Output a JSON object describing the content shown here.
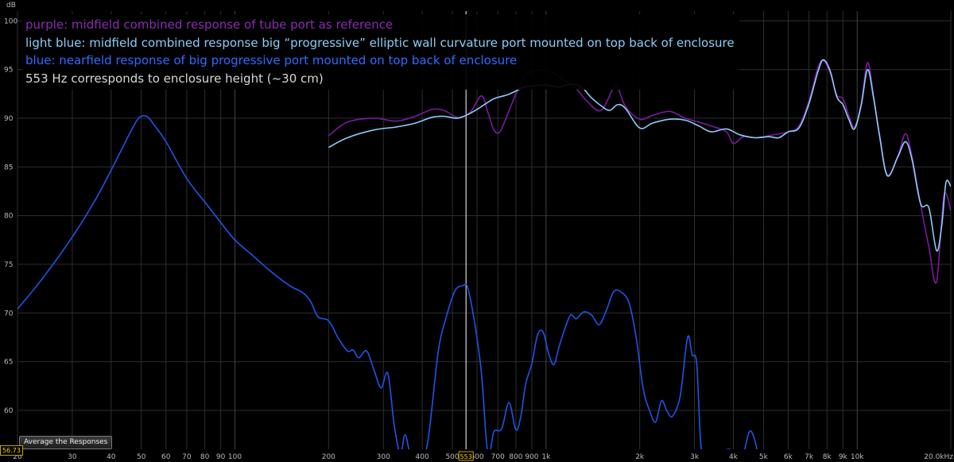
{
  "legend": {
    "purple": "purple: midfield combined response of tube port as reference",
    "light_blue": "light blue: midfield combined response big “progressive” elliptic wall curvature port mounted on top back of enclosure",
    "blue": "blue: nearfield response of big progressive port mounted on top back of enclosure",
    "note": "553 Hz corresponds to enclosure height (~30 cm)"
  },
  "colors": {
    "purple": "#7a1aa0",
    "light_blue": "#8ccdf5",
    "blue": "#1e55e8",
    "cursor": "#ffffff",
    "grid": "#2e2e2e",
    "note": "#d8d8d8"
  },
  "controls": {
    "average_button": "Average the Responses",
    "cursor_readout": "56.73",
    "cursor_freq_label": "553"
  },
  "chart_data": {
    "type": "line",
    "ylabel": "dB",
    "x_scale": "log",
    "xlim": [
      20,
      20000
    ],
    "ylim": [
      56,
      101
    ],
    "y_ticks": [
      60,
      65,
      70,
      75,
      80,
      85,
      90,
      95,
      100
    ],
    "x_ticks": [
      {
        "v": 20,
        "label": "20"
      },
      {
        "v": 30,
        "label": "30"
      },
      {
        "v": 40,
        "label": "40"
      },
      {
        "v": 50,
        "label": "50"
      },
      {
        "v": 60,
        "label": "60"
      },
      {
        "v": 70,
        "label": "70"
      },
      {
        "v": 80,
        "label": "80"
      },
      {
        "v": 90,
        "label": "90"
      },
      {
        "v": 100,
        "label": "100"
      },
      {
        "v": 200,
        "label": "200"
      },
      {
        "v": 300,
        "label": "300"
      },
      {
        "v": 400,
        "label": "400"
      },
      {
        "v": 500,
        "label": "500"
      },
      {
        "v": 600,
        "label": "600"
      },
      {
        "v": 700,
        "label": "700"
      },
      {
        "v": 800,
        "label": "800"
      },
      {
        "v": 900,
        "label": "900"
      },
      {
        "v": 1000,
        "label": "1k"
      },
      {
        "v": 2000,
        "label": "2k"
      },
      {
        "v": 3000,
        "label": "3k"
      },
      {
        "v": 4000,
        "label": "4k"
      },
      {
        "v": 5000,
        "label": "5k"
      },
      {
        "v": 6000,
        "label": "6k"
      },
      {
        "v": 7000,
        "label": "7k"
      },
      {
        "v": 8000,
        "label": "8k"
      },
      {
        "v": 9000,
        "label": "9k"
      },
      {
        "v": 10000,
        "label": "10k"
      },
      {
        "v": 20000,
        "label": "20.0kHz"
      }
    ],
    "cursor_x": 553,
    "series": [
      {
        "key": "purple",
        "points": [
          [
            200,
            88.2
          ],
          [
            230,
            89.6
          ],
          [
            280,
            90.0
          ],
          [
            330,
            89.7
          ],
          [
            380,
            90.2
          ],
          [
            430,
            90.9
          ],
          [
            470,
            90.8
          ],
          [
            520,
            90.1
          ],
          [
            570,
            90.6
          ],
          [
            620,
            92.3
          ],
          [
            650,
            90.6
          ],
          [
            680,
            88.8
          ],
          [
            710,
            88.6
          ],
          [
            750,
            90.3
          ],
          [
            800,
            92.5
          ],
          [
            850,
            94.2
          ],
          [
            900,
            94.8
          ],
          [
            1000,
            94.9
          ],
          [
            1100,
            94.3
          ],
          [
            1250,
            93.0
          ],
          [
            1350,
            91.8
          ],
          [
            1500,
            90.8
          ],
          [
            1650,
            93.2
          ],
          [
            1700,
            93.2
          ],
          [
            1800,
            91.2
          ],
          [
            2000,
            89.9
          ],
          [
            2200,
            90.3
          ],
          [
            2500,
            90.7
          ],
          [
            2800,
            90.0
          ],
          [
            3100,
            89.6
          ],
          [
            3400,
            89.2
          ],
          [
            3800,
            88.6
          ],
          [
            4000,
            87.4
          ],
          [
            4300,
            88.1
          ],
          [
            4700,
            88.0
          ],
          [
            5200,
            88.2
          ],
          [
            5600,
            88.4
          ],
          [
            6000,
            88.6
          ],
          [
            6500,
            89.2
          ],
          [
            7000,
            91.8
          ],
          [
            7500,
            95.3
          ],
          [
            7800,
            95.9
          ],
          [
            8200,
            94.6
          ],
          [
            8600,
            92.4
          ],
          [
            9000,
            92.0
          ],
          [
            9400,
            90.3
          ],
          [
            9800,
            89.1
          ],
          [
            10300,
            91.5
          ],
          [
            10800,
            95.7
          ],
          [
            11300,
            92.2
          ],
          [
            11800,
            88.4
          ],
          [
            12500,
            84.2
          ],
          [
            13500,
            86.1
          ],
          [
            14300,
            88.4
          ],
          [
            15000,
            86.1
          ],
          [
            16000,
            81.1
          ],
          [
            17000,
            76.8
          ],
          [
            18000,
            73.2
          ],
          [
            19000,
            82.0
          ],
          [
            20000,
            80.5
          ]
        ]
      },
      {
        "key": "light_blue",
        "points": [
          [
            200,
            87.0
          ],
          [
            230,
            88.0
          ],
          [
            280,
            88.8
          ],
          [
            330,
            89.1
          ],
          [
            380,
            89.5
          ],
          [
            430,
            90.1
          ],
          [
            470,
            90.2
          ],
          [
            520,
            90.0
          ],
          [
            570,
            90.5
          ],
          [
            620,
            91.2
          ],
          [
            680,
            92.0
          ],
          [
            750,
            92.4
          ],
          [
            800,
            92.8
          ],
          [
            850,
            93.2
          ],
          [
            900,
            93.3
          ],
          [
            1000,
            93.4
          ],
          [
            1100,
            93.2
          ],
          [
            1200,
            93.5
          ],
          [
            1300,
            93.2
          ],
          [
            1400,
            92.1
          ],
          [
            1500,
            91.3
          ],
          [
            1600,
            90.8
          ],
          [
            1700,
            91.4
          ],
          [
            1800,
            91.0
          ],
          [
            2000,
            89.0
          ],
          [
            2200,
            89.5
          ],
          [
            2500,
            89.9
          ],
          [
            2800,
            89.8
          ],
          [
            3100,
            89.2
          ],
          [
            3400,
            88.6
          ],
          [
            3800,
            88.9
          ],
          [
            4200,
            88.3
          ],
          [
            4700,
            88.0
          ],
          [
            5200,
            88.1
          ],
          [
            5600,
            88.0
          ],
          [
            6000,
            88.6
          ],
          [
            6500,
            89.0
          ],
          [
            7000,
            91.5
          ],
          [
            7500,
            94.9
          ],
          [
            7800,
            96.0
          ],
          [
            8200,
            94.8
          ],
          [
            8600,
            92.2
          ],
          [
            9000,
            91.4
          ],
          [
            9400,
            89.9
          ],
          [
            9800,
            88.9
          ],
          [
            10300,
            91.3
          ],
          [
            10800,
            95.0
          ],
          [
            11300,
            92.0
          ],
          [
            11800,
            88.2
          ],
          [
            12500,
            84.1
          ],
          [
            13500,
            86.0
          ],
          [
            14300,
            87.6
          ],
          [
            15000,
            85.8
          ],
          [
            16000,
            81.2
          ],
          [
            17000,
            80.8
          ],
          [
            18000,
            76.4
          ],
          [
            18700,
            79.0
          ],
          [
            19300,
            83.4
          ],
          [
            20000,
            83.0
          ]
        ]
      },
      {
        "key": "blue",
        "points": [
          [
            20,
            70.4
          ],
          [
            24,
            73.5
          ],
          [
            30,
            77.8
          ],
          [
            36,
            81.9
          ],
          [
            42,
            86.0
          ],
          [
            46,
            88.5
          ],
          [
            49,
            90.0
          ],
          [
            52,
            90.2
          ],
          [
            55,
            89.3
          ],
          [
            60,
            87.6
          ],
          [
            70,
            83.8
          ],
          [
            80,
            81.4
          ],
          [
            90,
            79.3
          ],
          [
            100,
            77.5
          ],
          [
            115,
            75.8
          ],
          [
            130,
            74.3
          ],
          [
            150,
            72.8
          ],
          [
            165,
            72.1
          ],
          [
            175,
            71.2
          ],
          [
            185,
            69.6
          ],
          [
            200,
            69.2
          ],
          [
            215,
            67.4
          ],
          [
            230,
            66.1
          ],
          [
            240,
            66.2
          ],
          [
            250,
            65.4
          ],
          [
            265,
            66.1
          ],
          [
            280,
            64.1
          ],
          [
            295,
            62.3
          ],
          [
            310,
            63.8
          ],
          [
            325,
            58.5
          ],
          [
            340,
            55.5
          ],
          [
            352,
            57.5
          ],
          [
            365,
            55.6
          ],
          [
            380,
            54.5
          ],
          [
            400,
            54.6
          ],
          [
            420,
            57.5
          ],
          [
            450,
            66.0
          ],
          [
            480,
            69.8
          ],
          [
            510,
            72.3
          ],
          [
            540,
            72.8
          ],
          [
            560,
            72.6
          ],
          [
            590,
            68.9
          ],
          [
            620,
            63.8
          ],
          [
            650,
            55.5
          ],
          [
            680,
            57.8
          ],
          [
            720,
            58.1
          ],
          [
            760,
            60.8
          ],
          [
            800,
            58.0
          ],
          [
            830,
            59.4
          ],
          [
            860,
            62.7
          ],
          [
            900,
            64.8
          ],
          [
            940,
            67.8
          ],
          [
            980,
            68.0
          ],
          [
            1020,
            65.8
          ],
          [
            1060,
            64.7
          ],
          [
            1100,
            66.5
          ],
          [
            1150,
            68.4
          ],
          [
            1200,
            69.8
          ],
          [
            1250,
            69.4
          ],
          [
            1320,
            70.1
          ],
          [
            1400,
            69.8
          ],
          [
            1480,
            68.8
          ],
          [
            1560,
            70.2
          ],
          [
            1650,
            72.2
          ],
          [
            1750,
            72.1
          ],
          [
            1850,
            71.0
          ],
          [
            1950,
            67.4
          ],
          [
            2050,
            62.3
          ],
          [
            2150,
            60.0
          ],
          [
            2250,
            58.8
          ],
          [
            2350,
            61.0
          ],
          [
            2450,
            59.9
          ],
          [
            2550,
            59.4
          ],
          [
            2700,
            61.5
          ],
          [
            2850,
            67.5
          ],
          [
            2950,
            65.7
          ],
          [
            3050,
            64.8
          ],
          [
            3150,
            56.2
          ],
          [
            3300,
            54.5
          ],
          [
            3600,
            55.6
          ],
          [
            3900,
            56.0
          ],
          [
            4100,
            55.4
          ],
          [
            4300,
            55.5
          ],
          [
            4500,
            57.8
          ],
          [
            4650,
            57.3
          ],
          [
            4800,
            55.5
          ]
        ]
      }
    ]
  }
}
